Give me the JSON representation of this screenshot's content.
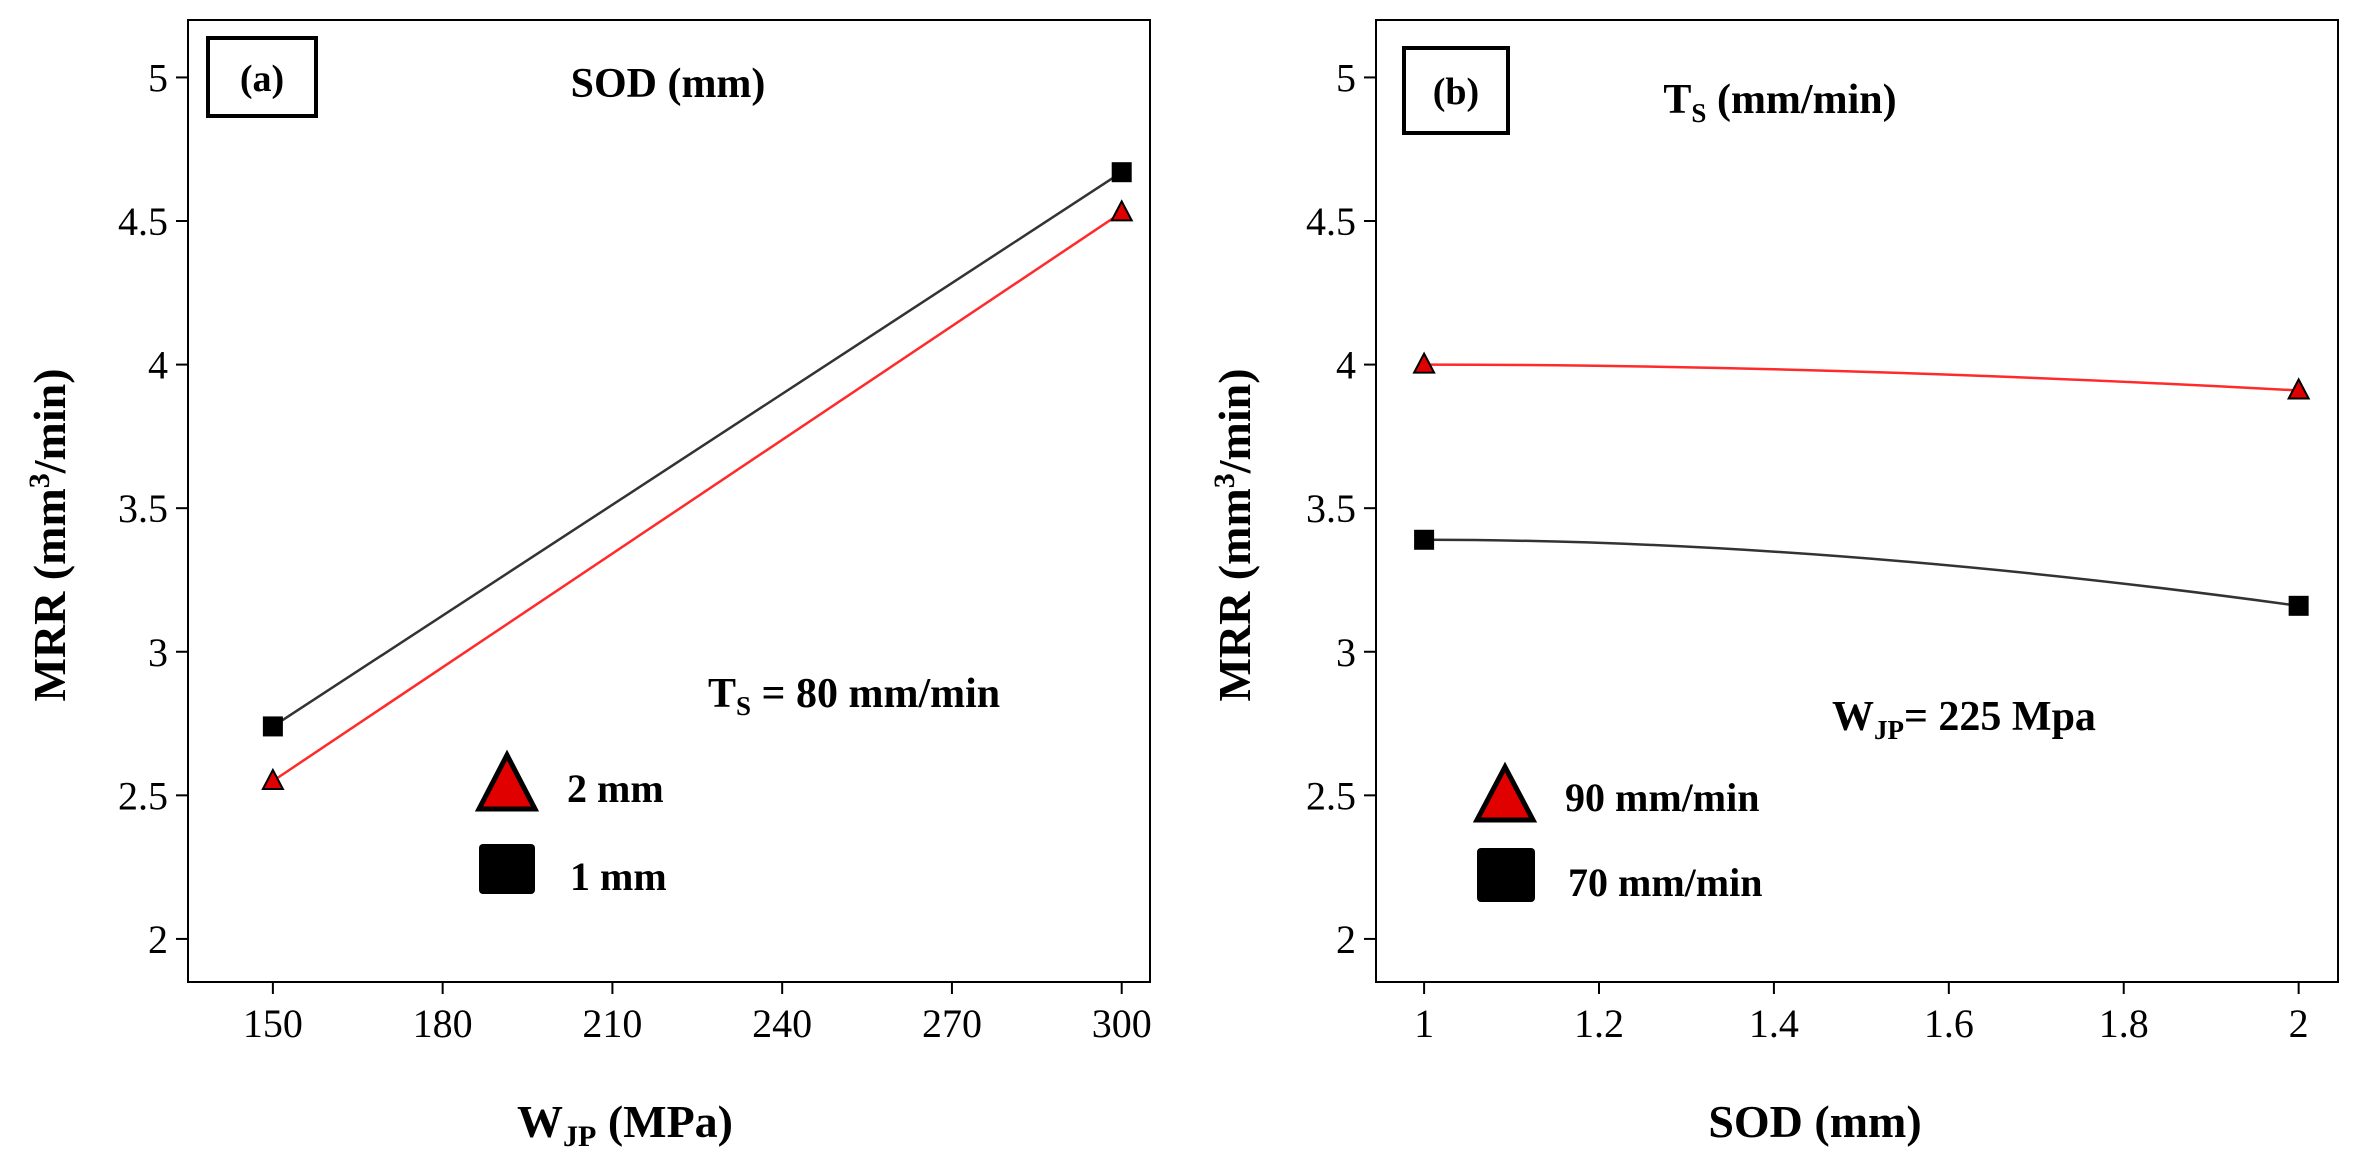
{
  "colors": {
    "series_red": "#ff2a2a",
    "marker_red": "#e00000",
    "series_black": "#333333",
    "marker_black": "#000000"
  },
  "chart_data": [
    {
      "type": "line",
      "panel_label": "(a)",
      "title": "SOD (mm)",
      "xlabel": {
        "main": "W",
        "sub": "JP",
        "rest": " (MPa)"
      },
      "ylabel": {
        "main": "MRR (mm",
        "sup": "3",
        "rest": "/min)"
      },
      "xlim": [
        135,
        305
      ],
      "ylim": [
        1.85,
        5.2
      ],
      "xticks": [
        150,
        180,
        210,
        240,
        270,
        300
      ],
      "yticks": [
        2,
        2.5,
        3,
        3.5,
        4,
        4.5,
        5
      ],
      "hold": {
        "main": "T",
        "sub": "S",
        "rest": " =  80 mm/min"
      },
      "series": [
        {
          "name": "2 mm",
          "marker": "triangle",
          "color": "red",
          "x": [
            150,
            300
          ],
          "values": [
            2.55,
            4.53
          ]
        },
        {
          "name": "1 mm",
          "marker": "square",
          "color": "black",
          "x": [
            150,
            300
          ],
          "values": [
            2.74,
            4.67
          ]
        }
      ]
    },
    {
      "type": "line",
      "panel_label": "(b)",
      "title": {
        "main": "T",
        "sub": "S",
        "rest": " (mm/min)"
      },
      "xlabel": "SOD (mm)",
      "ylabel": {
        "main": "MRR (mm",
        "sup": "3",
        "rest": "/min)"
      },
      "xlim": [
        0.945,
        2.045
      ],
      "ylim": [
        1.85,
        5.2
      ],
      "xticks": [
        1,
        1.2,
        1.4,
        1.6,
        1.8,
        2
      ],
      "xtick_labels": [
        "1",
        "1.2",
        "1.4",
        "1.6",
        "1.8",
        "2"
      ],
      "yticks": [
        2,
        2.5,
        3,
        3.5,
        4,
        4.5,
        5
      ],
      "hold": {
        "main": "W",
        "sub": "JP",
        "rest": "=  225 Mpa"
      },
      "series": [
        {
          "name": "90 mm/min",
          "marker": "triangle",
          "color": "red",
          "x": [
            1,
            2
          ],
          "values": [
            4.0,
            3.91
          ]
        },
        {
          "name": "70 mm/min",
          "marker": "square",
          "color": "black",
          "x": [
            1,
            2
          ],
          "values": [
            3.39,
            3.16
          ]
        }
      ]
    }
  ]
}
